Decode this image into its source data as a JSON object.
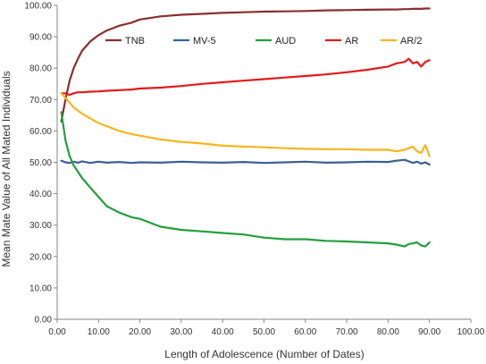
{
  "chart_data": {
    "type": "line",
    "title": "",
    "xlabel": "Length  of  Adolescence  (Number of Dates)",
    "ylabel": "Mean  Mate  Value  of  All  Mated  Individuals",
    "xlim": [
      0,
      100
    ],
    "ylim": [
      0,
      100
    ],
    "x_ticks": [
      "0.00",
      "10.00",
      "20.00",
      "30.00",
      "40.00",
      "50.00",
      "60.00",
      "70.00",
      "80.00",
      "90.00",
      "100.00"
    ],
    "y_ticks": [
      "0.00",
      "10.00",
      "20.00",
      "30.00",
      "40.00",
      "50.00",
      "60.00",
      "70.00",
      "80.00",
      "90.00",
      "100.00"
    ],
    "grid": false,
    "legend_position": "top",
    "x": [
      1,
      2,
      3,
      4,
      5,
      6,
      8,
      10,
      12,
      15,
      18,
      20,
      25,
      30,
      35,
      40,
      45,
      50,
      55,
      60,
      65,
      70,
      75,
      80,
      82,
      84,
      85,
      86,
      87,
      88,
      89,
      90
    ],
    "series": [
      {
        "name": "TNB",
        "color": "#8B2E2E",
        "values": [
          63,
          70,
          76,
          80,
          83,
          85.5,
          88.5,
          90.5,
          92,
          93.5,
          94.5,
          95.5,
          96.5,
          97,
          97.3,
          97.6,
          97.8,
          98,
          98.1,
          98.2,
          98.4,
          98.5,
          98.6,
          98.7,
          98.7,
          98.8,
          98.8,
          98.9,
          98.9,
          98.9,
          99,
          99
        ]
      },
      {
        "name": "MV-5",
        "color": "#3A5F9A",
        "values": [
          50.5,
          50,
          49.8,
          50.2,
          49.9,
          50.3,
          49.8,
          50.2,
          49.9,
          50.1,
          49.8,
          50,
          49.9,
          50.2,
          50,
          49.9,
          50.1,
          49.8,
          50,
          50.2,
          49.9,
          50,
          50.2,
          50.1,
          50.5,
          50.8,
          50.3,
          49.8,
          50.2,
          49.6,
          50,
          49.3
        ]
      },
      {
        "name": "AUD",
        "color": "#22A03C",
        "values": [
          66,
          57,
          52,
          49,
          47,
          45,
          42,
          39,
          36,
          34,
          32.5,
          32,
          29.5,
          28.5,
          28,
          27.5,
          27,
          26,
          25.5,
          25.5,
          25,
          24.8,
          24.5,
          24.2,
          23.8,
          23.2,
          24,
          24.2,
          24.5,
          23.5,
          23.2,
          24.5
        ]
      },
      {
        "name": "AR",
        "color": "#E31A1C",
        "values": [
          72,
          72,
          71.5,
          72,
          72.3,
          72.3,
          72.5,
          72.6,
          72.8,
          73,
          73.2,
          73.5,
          73.8,
          74.3,
          75,
          75.5,
          76,
          76.5,
          77,
          77.5,
          78,
          78.7,
          79.5,
          80.5,
          81.5,
          82,
          83,
          81.5,
          82,
          80.5,
          82,
          82.5
        ]
      },
      {
        "name": "AR/2",
        "color": "#F7B51E",
        "values": [
          72,
          70.5,
          69,
          67.5,
          66.5,
          65.5,
          64,
          62.5,
          61.5,
          60,
          59,
          58.5,
          57.3,
          56.5,
          56,
          55.3,
          55,
          54.8,
          54.5,
          54.3,
          54.2,
          54.2,
          54,
          54,
          53.5,
          54,
          54.5,
          55,
          53.5,
          53,
          55.5,
          52
        ]
      }
    ]
  }
}
